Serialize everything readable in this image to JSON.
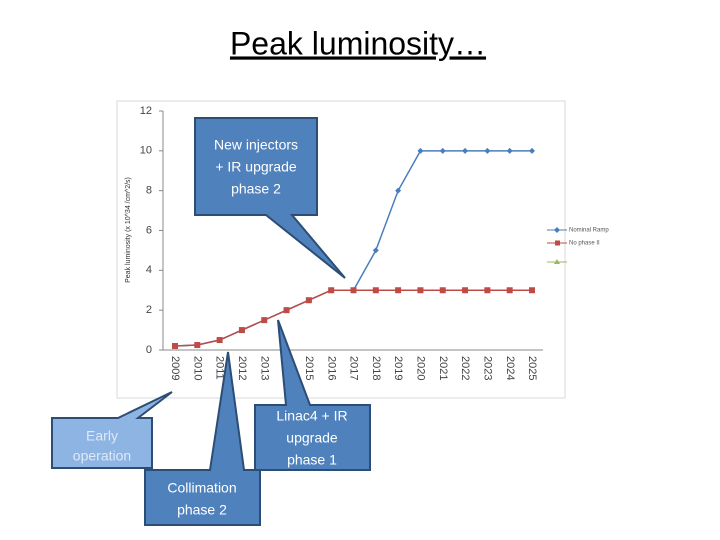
{
  "title": "Peak luminosity…",
  "chart_data": {
    "type": "line",
    "y_label": "Peak luminosity (x 10^34 /cm^2/s)",
    "categories": [
      "2009",
      "2010",
      "2011",
      "2012",
      "2013",
      "2014",
      "2015",
      "2016",
      "2017",
      "2018",
      "2019",
      "2020",
      "2021",
      "2022",
      "2023",
      "2024",
      "2025"
    ],
    "series": [
      {
        "name": "Nominal Ramp",
        "color": "#4a7ebb",
        "marker": "diamond",
        "values": [
          0.2,
          0.25,
          0.5,
          1,
          1.5,
          2,
          2.5,
          3,
          3,
          5,
          8,
          10,
          10,
          10,
          10,
          10,
          10
        ]
      },
      {
        "name": "No phase II",
        "color": "#be4b48",
        "marker": "square",
        "values": [
          0.2,
          0.25,
          0.5,
          1,
          1.5,
          2,
          2.5,
          3,
          3,
          3,
          3,
          3,
          3,
          3,
          3,
          3,
          3
        ]
      }
    ],
    "ylim": [
      0,
      12
    ],
    "yticks": [
      0,
      2,
      4,
      6,
      8,
      10,
      12
    ],
    "legend": "right"
  },
  "callouts": [
    {
      "lines": [
        "New injectors",
        "+ IR upgrade",
        "phase 2"
      ]
    },
    {
      "lines": [
        "Linac4 + IR",
        "upgrade",
        "phase 1"
      ]
    },
    {
      "lines": [
        "Early",
        "operation"
      ]
    },
    {
      "lines": [
        "Collimation",
        "phase 2"
      ]
    }
  ]
}
